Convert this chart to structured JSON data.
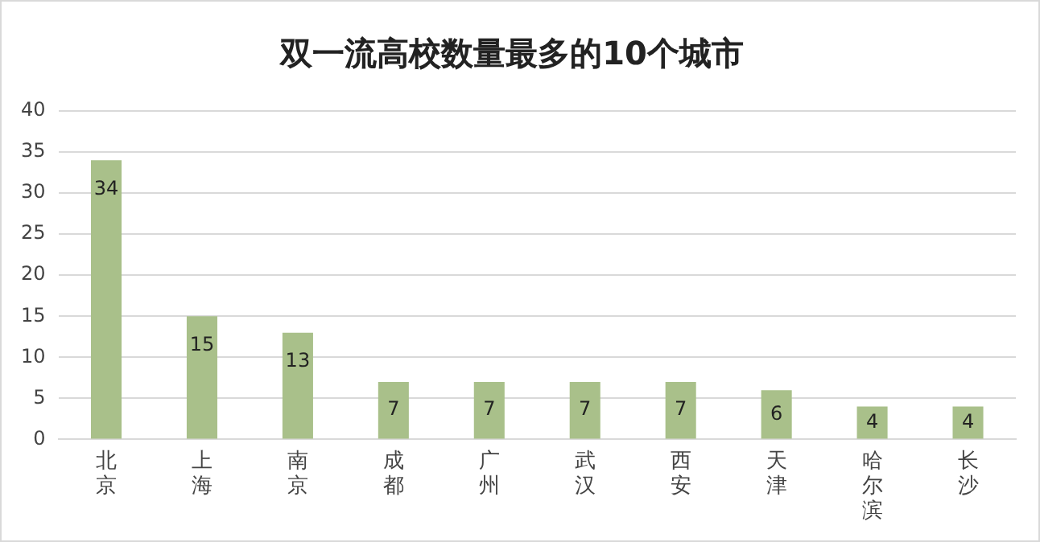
{
  "chart_data": {
    "type": "bar",
    "title": "双一流高校数量最多的10个城市",
    "categories": [
      "北京",
      "上海",
      "南京",
      "成都",
      "广州",
      "武汉",
      "西安",
      "天津",
      "哈尔滨",
      "长沙"
    ],
    "values": [
      34,
      15,
      13,
      7,
      7,
      7,
      7,
      6,
      4,
      4
    ],
    "color": "#a9c08a",
    "ylim": [
      0,
      40
    ],
    "yticks": [
      0,
      5,
      10,
      15,
      20,
      25,
      30,
      35,
      40
    ],
    "grid": "y",
    "legend": false,
    "data_labels": true
  }
}
